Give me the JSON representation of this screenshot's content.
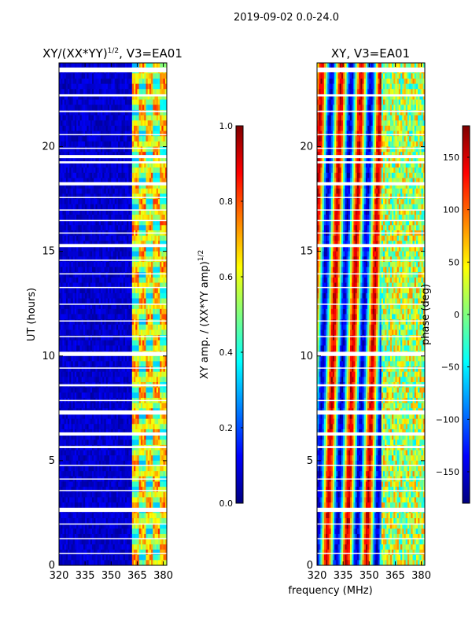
{
  "suptitle": "2019-09-02 0.0-24.0",
  "xlabel": "frequency (MHz)",
  "colors": {
    "axis": "#000000",
    "background": "#ffffff",
    "gap": "#ffffff"
  },
  "chart_data": [
    {
      "type": "heatmap",
      "title_prefix": "XY/(XX*YY)",
      "title_exp": "1/2",
      "title_suffix": ", V3=EA01",
      "ylabel": "UT (hours)",
      "xlim": [
        320,
        382
      ],
      "ylim": [
        0,
        24
      ],
      "xticks": [
        320,
        335,
        350,
        365,
        380
      ],
      "xtick_labels": [
        "320",
        "335",
        "350",
        "365",
        "380"
      ],
      "yticks": [
        0,
        5,
        10,
        15,
        20
      ],
      "ytick_labels": [
        "0",
        "5",
        "10",
        "15",
        "20"
      ],
      "colorbar": {
        "label_prefix": "XY amp. / (XX*YY amp)",
        "label_exp": "1/2",
        "range": [
          0.0,
          1.0
        ],
        "ticks": [
          0.0,
          0.2,
          0.4,
          0.6,
          0.8,
          1.0
        ],
        "tick_labels": [
          "0.0",
          "0.2",
          "0.4",
          "0.6",
          "0.8",
          "1.0"
        ],
        "colormap": "jet"
      },
      "description": "amplitude ratio, mostly near 0 (dark blue) below 362 MHz, bright patches 0.3-0.9 between 362 and 382 MHz; blank rows where data missing"
    },
    {
      "type": "heatmap",
      "title": "XY, V3=EA01",
      "xlim": [
        320,
        382
      ],
      "ylim": [
        0,
        24
      ],
      "xticks": [
        320,
        335,
        350,
        365,
        380
      ],
      "xtick_labels": [
        "320",
        "335",
        "350",
        "365",
        "380"
      ],
      "yticks": [
        0,
        5,
        10,
        15,
        20
      ],
      "ytick_labels": [
        "0",
        "5",
        "10",
        "15",
        "20"
      ],
      "colorbar": {
        "label": "phase (deg)",
        "range": [
          -180,
          180
        ],
        "ticks": [
          -150,
          -100,
          -50,
          0,
          50,
          100,
          150
        ],
        "tick_labels": [
          "−150",
          "−100",
          "−50",
          "0",
          "50",
          "100",
          "150"
        ],
        "colormap": "jet"
      },
      "description": "phase varies across frequency in vertical stripes spanning the full -180 to 180 range"
    }
  ],
  "gaps_hours": [
    [
      23.55,
      23.78
    ],
    [
      22.4,
      22.5
    ],
    [
      21.65,
      21.72
    ],
    [
      20.55,
      20.6
    ],
    [
      19.9,
      19.95
    ],
    [
      19.45,
      19.6
    ],
    [
      19.2,
      19.3
    ],
    [
      18.15,
      18.3
    ],
    [
      17.55,
      17.6
    ],
    [
      16.95,
      17.0
    ],
    [
      16.45,
      16.5
    ],
    [
      15.85,
      15.9
    ],
    [
      15.2,
      15.35
    ],
    [
      14.55,
      14.6
    ],
    [
      13.9,
      13.95
    ],
    [
      13.25,
      13.3
    ],
    [
      12.45,
      12.5
    ],
    [
      11.65,
      11.7
    ],
    [
      10.9,
      10.95
    ],
    [
      10.0,
      10.2
    ],
    [
      9.4,
      9.45
    ],
    [
      8.55,
      8.65
    ],
    [
      7.85,
      7.9
    ],
    [
      7.2,
      7.4
    ],
    [
      6.2,
      6.35
    ],
    [
      5.6,
      5.7
    ],
    [
      4.75,
      4.8
    ],
    [
      4.1,
      4.15
    ],
    [
      3.55,
      3.6
    ],
    [
      2.55,
      2.75
    ],
    [
      1.95,
      2.0
    ],
    [
      1.25,
      1.3
    ],
    [
      0.55,
      0.6
    ]
  ]
}
